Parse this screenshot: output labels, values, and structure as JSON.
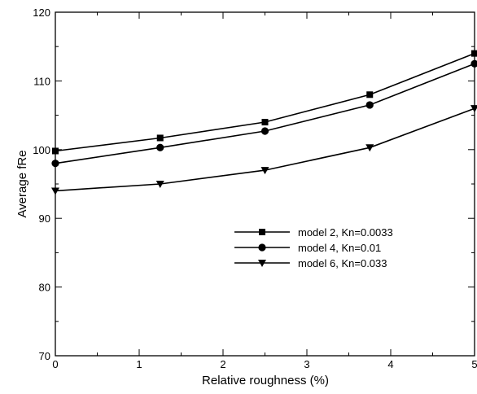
{
  "chart_data": {
    "type": "line",
    "xlabel": "Relative roughness (%)",
    "ylabel": "Average fRe",
    "xlim": [
      0,
      5
    ],
    "ylim": [
      70,
      120
    ],
    "xticks": [
      "0",
      "1",
      "2",
      "3",
      "4",
      "5"
    ],
    "yticks": [
      "70",
      "80",
      "90",
      "100",
      "110",
      "120"
    ],
    "grid": false,
    "legend_position": "center-right",
    "series": [
      {
        "name": "model 2, Kn=0.0033",
        "marker": "square",
        "x": [
          0,
          1.25,
          2.5,
          3.75,
          5
        ],
        "y": [
          99.8,
          101.7,
          104.0,
          108.0,
          114.0
        ]
      },
      {
        "name": "model 4, Kn=0.01",
        "marker": "circle",
        "x": [
          0,
          1.25,
          2.5,
          3.75,
          5
        ],
        "y": [
          98.0,
          100.3,
          102.7,
          106.5,
          112.5
        ]
      },
      {
        "name": "model 6, Kn=0.033",
        "marker": "triangle-down",
        "x": [
          0,
          1.25,
          2.5,
          3.75,
          5
        ],
        "y": [
          94.0,
          95.0,
          97.0,
          100.3,
          106.0
        ]
      }
    ],
    "colors": {
      "line": "#000000",
      "background": "#ffffff"
    }
  }
}
